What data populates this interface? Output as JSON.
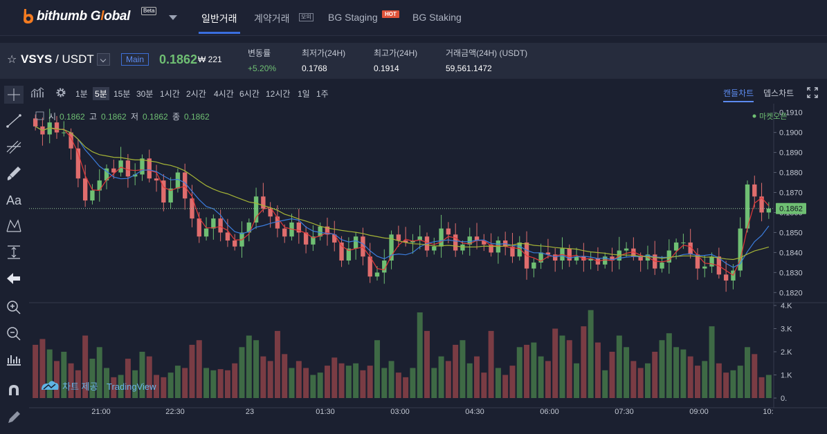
{
  "brand": {
    "name_prefix": "bithumb G",
    "name_o": "l",
    "name_suffix": "obal",
    "beta": "Beta"
  },
  "nav": {
    "items": [
      {
        "label": "일반거래",
        "active": true
      },
      {
        "label": "계약거래",
        "badge": "모의"
      },
      {
        "label": "BG Staging",
        "badge": "HOT"
      },
      {
        "label": "BG Staking"
      }
    ]
  },
  "ticker": {
    "base": "VSYS",
    "sep": " / ",
    "quote": "USDT",
    "market_tag": "Main",
    "price": "0.1862",
    "krw": "₩ 221",
    "stats": [
      {
        "label": "변동률",
        "value": "+5.20%",
        "up": true
      },
      {
        "label": "최저가(24H)",
        "value": "0.1768"
      },
      {
        "label": "최고가(24H)",
        "value": "0.1914"
      },
      {
        "label": "거래금액(24H) (USDT)",
        "value": "59,561.1472"
      }
    ]
  },
  "toolbar": {
    "intervals": [
      "1분",
      "5분",
      "15분",
      "30분",
      "1시간",
      "2시간",
      "4시간",
      "6시간",
      "12시간",
      "1일",
      "1주"
    ],
    "active_interval": "5분",
    "chart_tabs": [
      "캔들차트",
      "뎁스차트"
    ],
    "active_chart_tab": "캔들차트"
  },
  "legend": {
    "open_label": "시",
    "open": "0.1862",
    "high_label": "고",
    "high": "0.1862",
    "low_label": "저",
    "low": "0.1862",
    "close_label": "종",
    "close": "0.1862",
    "market_status": "마켓오픈"
  },
  "watermark": {
    "label": "차트 제공",
    "brand": "TradingView"
  },
  "colors": {
    "up": "#6fbf73",
    "down": "#e06d6d",
    "accent": "#3a6fe0",
    "ma_fast": "#e33a3a",
    "ma_mid": "#3b7ddd",
    "ma_slow": "#a6b536"
  },
  "chart_data": {
    "type": "candlestick",
    "price_axis": {
      "ticks": [
        "0.1910",
        "0.1900",
        "0.1890",
        "0.1880",
        "0.1870",
        "0.1860",
        "0.1850",
        "0.1840",
        "0.1830",
        "0.1820"
      ],
      "min": 0.1817,
      "max": 0.1913
    },
    "last_price_label": "0.1862",
    "volume_axis": {
      "ticks": [
        "4.K",
        "3.K",
        "2.K",
        "1.K",
        "0."
      ],
      "max": 4000
    },
    "time_axis": [
      "21:00",
      "22:30",
      "23",
      "01:30",
      "03:00",
      "04:30",
      "06:00",
      "07:30",
      "09:00",
      "10:"
    ],
    "closes": [
      0.1903,
      0.1899,
      0.1905,
      0.19,
      0.19,
      0.1892,
      0.1877,
      0.1866,
      0.1871,
      0.1876,
      0.1882,
      0.188,
      0.1886,
      0.1878,
      0.1879,
      0.1887,
      0.1877,
      0.1876,
      0.1865,
      0.1872,
      0.188,
      0.1867,
      0.1857,
      0.1848,
      0.1852,
      0.1857,
      0.185,
      0.1846,
      0.1843,
      0.185,
      0.1855,
      0.1868,
      0.1862,
      0.1858,
      0.1852,
      0.1848,
      0.1855,
      0.185,
      0.1844,
      0.1848,
      0.1853,
      0.1849,
      0.1845,
      0.1836,
      0.1842,
      0.1848,
      0.1838,
      0.1828,
      0.183,
      0.1836,
      0.1849,
      0.1846,
      0.1845,
      0.1846,
      0.1848,
      0.1841,
      0.1843,
      0.1852,
      0.1849,
      0.1841,
      0.1844,
      0.1848,
      0.1846,
      0.1844,
      0.184,
      0.1846,
      0.1843,
      0.1838,
      0.1845,
      0.1832,
      0.1835,
      0.184,
      0.1839,
      0.1836,
      0.1842,
      0.1836,
      0.1838,
      0.1836,
      0.1837,
      0.1834,
      0.1838,
      0.1836,
      0.1841,
      0.1842,
      0.1838,
      0.1836,
      0.1839,
      0.1832,
      0.1835,
      0.1841,
      0.1845,
      0.1845,
      0.1839,
      0.1832,
      0.1833,
      0.1838,
      0.1829,
      0.1826,
      0.1831,
      0.1852,
      0.1874,
      0.1868,
      0.186,
      0.1862
    ],
    "volumes": [
      2300,
      2550,
      2100,
      1600,
      2000,
      1500,
      1200,
      2700,
      1700,
      2200,
      1300,
      900,
      1000,
      1700,
      1200,
      2000,
      1800,
      1000,
      900,
      1100,
      1400,
      1300,
      2300,
      2500,
      1300,
      1200,
      1250,
      1200,
      1500,
      2200,
      2700,
      2500,
      1800,
      1600,
      2900,
      1900,
      1300,
      1600,
      1300,
      1000,
      1100,
      1400,
      1750,
      1500,
      1400,
      1500,
      1200,
      1400,
      2500,
      1300,
      1600,
      1100,
      900,
      1300,
      3700,
      2900,
      1300,
      1800,
      1600,
      2300,
      2500,
      1500,
      1800,
      1100,
      2900,
      1300,
      1000,
      1400,
      2200,
      2300,
      2400,
      1800,
      1600,
      3000,
      2700,
      2500,
      1500,
      3100,
      3800,
      2400,
      1200,
      2000,
      2700,
      2200,
      1600,
      1300,
      1500,
      2000,
      2500,
      2800,
      2200,
      2100,
      1800,
      1400,
      1600,
      3100,
      1500,
      1100,
      1200,
      1400,
      2200,
      1900,
      900,
      1000
    ]
  }
}
